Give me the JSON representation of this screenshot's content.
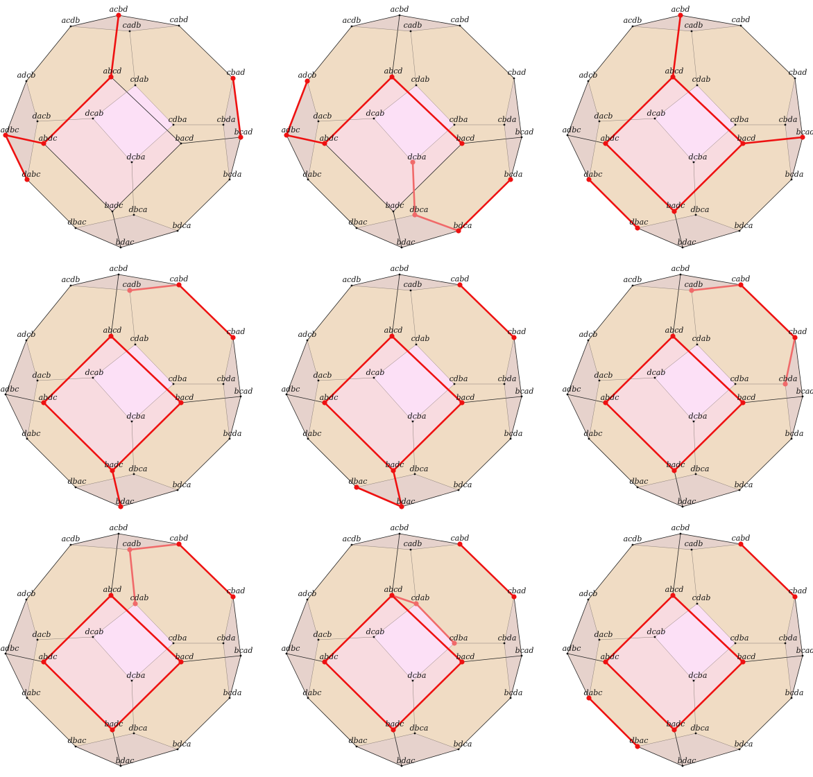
{
  "diagram": {
    "type": "permutohedron",
    "vertices": [
      "acbd",
      "cabd",
      "acdb",
      "cadb",
      "adcb",
      "abcd",
      "cdab",
      "cbad",
      "dacb",
      "dcab",
      "cdba",
      "cbda",
      "adbc",
      "abdc",
      "bcad",
      "bacd",
      "dcba",
      "bcda",
      "dabc",
      "badc",
      "dbca",
      "dbac",
      "bdca",
      "bdac"
    ],
    "colors": {
      "outer_face": "#f0dcc4",
      "side_face": "#e6d2cc",
      "mid_face": "#f8dbe0",
      "inner_face": "#fce0f6",
      "edge": "#222222",
      "path": "#ee1111",
      "path_hidden": "#f06a6a"
    },
    "panels": [
      {
        "path": [
          [
            "acbd",
            "abcd"
          ],
          [
            "abcd",
            "abdc"
          ],
          [
            "abdc",
            "adbc"
          ],
          [
            "adbc",
            "dabc"
          ],
          [
            "cbad",
            "bcad"
          ]
        ],
        "hidden": []
      },
      {
        "path": [
          [
            "adcb",
            "adbc"
          ],
          [
            "adbc",
            "abdc"
          ],
          [
            "abdc",
            "abcd"
          ],
          [
            "abcd",
            "bacd"
          ],
          [
            "bdca",
            "bcda"
          ]
        ],
        "hidden": [
          [
            "dcba",
            "dbca"
          ],
          [
            "dbca",
            "bdca"
          ]
        ]
      },
      {
        "path": [
          [
            "acbd",
            "abcd"
          ],
          [
            "abcd",
            "abdc"
          ],
          [
            "abdc",
            "badc"
          ],
          [
            "badc",
            "bacd"
          ],
          [
            "bacd",
            "abcd"
          ],
          [
            "bacd",
            "bcad"
          ],
          [
            "dabc",
            "dbac"
          ]
        ],
        "hidden": []
      },
      {
        "path": [
          [
            "cabd",
            "cbad"
          ],
          [
            "abcd",
            "abdc"
          ],
          [
            "abdc",
            "badc"
          ],
          [
            "badc",
            "bacd"
          ],
          [
            "bacd",
            "abcd"
          ],
          [
            "badc",
            "bdac"
          ]
        ],
        "hidden": [
          [
            "cadb",
            "cabd"
          ]
        ]
      },
      {
        "path": [
          [
            "cabd",
            "cbad"
          ],
          [
            "abcd",
            "abdc"
          ],
          [
            "abdc",
            "badc"
          ],
          [
            "badc",
            "bacd"
          ],
          [
            "bacd",
            "abcd"
          ],
          [
            "badc",
            "bdac"
          ],
          [
            "bdac",
            "dbac"
          ]
        ],
        "hidden": []
      },
      {
        "path": [
          [
            "cabd",
            "cbad"
          ],
          [
            "abcd",
            "abdc"
          ],
          [
            "abdc",
            "badc"
          ],
          [
            "badc",
            "bacd"
          ],
          [
            "bacd",
            "abcd"
          ]
        ],
        "hidden": [
          [
            "cadb",
            "cabd"
          ],
          [
            "cbad",
            "cbda"
          ]
        ]
      },
      {
        "path": [
          [
            "cabd",
            "cbad"
          ],
          [
            "abcd",
            "abdc"
          ],
          [
            "abdc",
            "badc"
          ],
          [
            "badc",
            "bacd"
          ],
          [
            "bacd",
            "abcd"
          ]
        ],
        "hidden": [
          [
            "cadb",
            "cabd"
          ],
          [
            "cadb",
            "cdab"
          ]
        ]
      },
      {
        "path": [
          [
            "cabd",
            "cbad"
          ],
          [
            "abcd",
            "abdc"
          ],
          [
            "abdc",
            "badc"
          ],
          [
            "badc",
            "bacd"
          ],
          [
            "bacd",
            "abcd"
          ]
        ],
        "hidden": [
          [
            "abcd",
            "cdab"
          ],
          [
            "cdab",
            "cdba"
          ]
        ]
      },
      {
        "path": [
          [
            "cabd",
            "cbad"
          ],
          [
            "abcd",
            "abdc"
          ],
          [
            "abdc",
            "badc"
          ],
          [
            "badc",
            "bacd"
          ],
          [
            "bacd",
            "abcd"
          ],
          [
            "dabc",
            "dbac"
          ]
        ],
        "hidden": []
      }
    ]
  }
}
